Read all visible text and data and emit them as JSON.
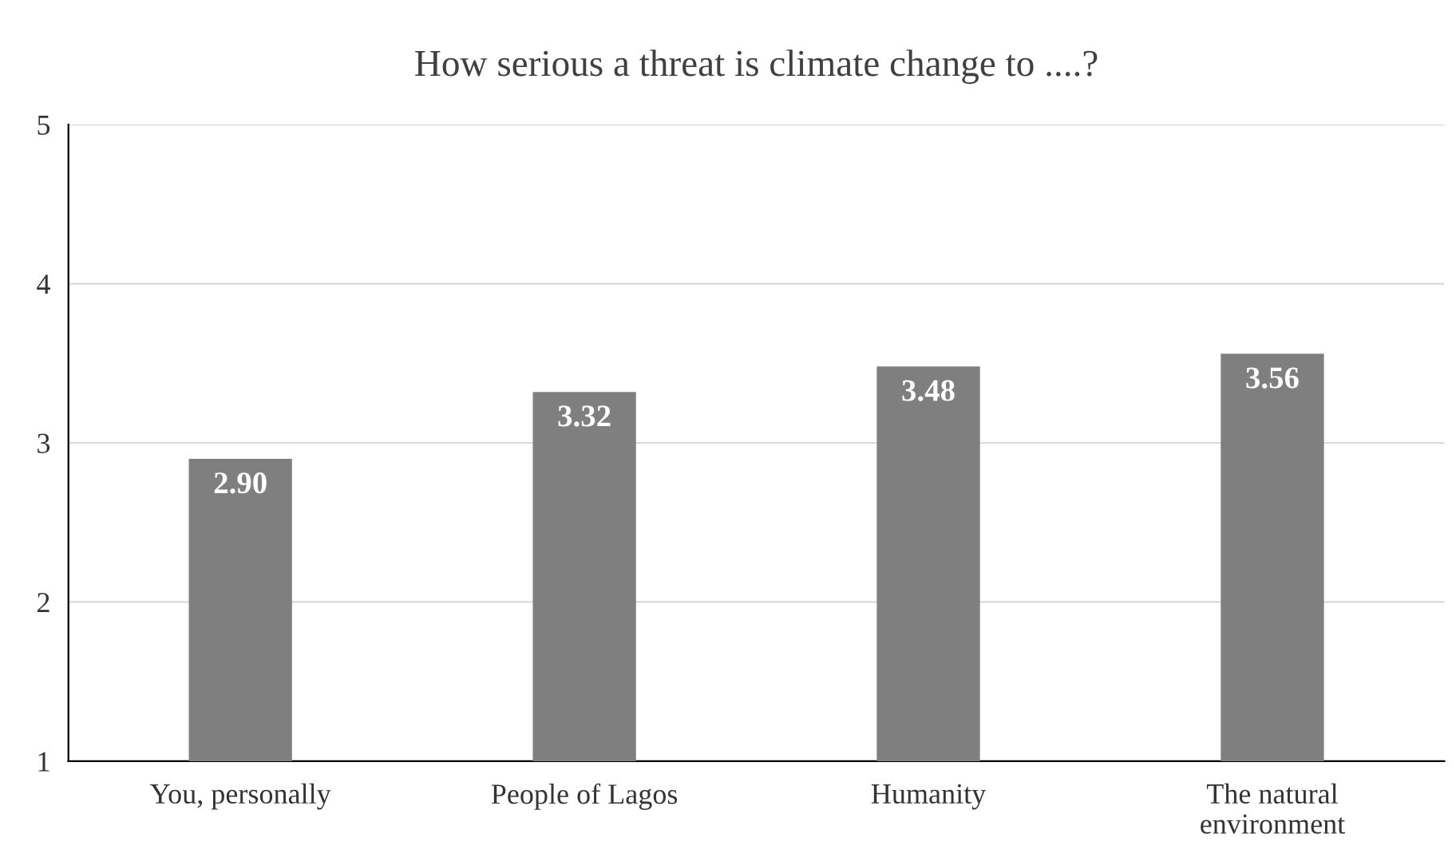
{
  "chart_data": {
    "type": "bar",
    "title": "How serious a threat is climate change to ....?",
    "categories": [
      "You, personally",
      "People of Lagos",
      "Humanity",
      "The natural environment"
    ],
    "values": [
      2.9,
      3.32,
      3.48,
      3.56
    ],
    "value_labels": [
      "2.90",
      "3.32",
      "3.48",
      "3.56"
    ],
    "color": "#7f7f7f",
    "ylim": [
      1,
      5
    ],
    "yticks": [
      1,
      2,
      3,
      4,
      5
    ],
    "grid": "y"
  }
}
